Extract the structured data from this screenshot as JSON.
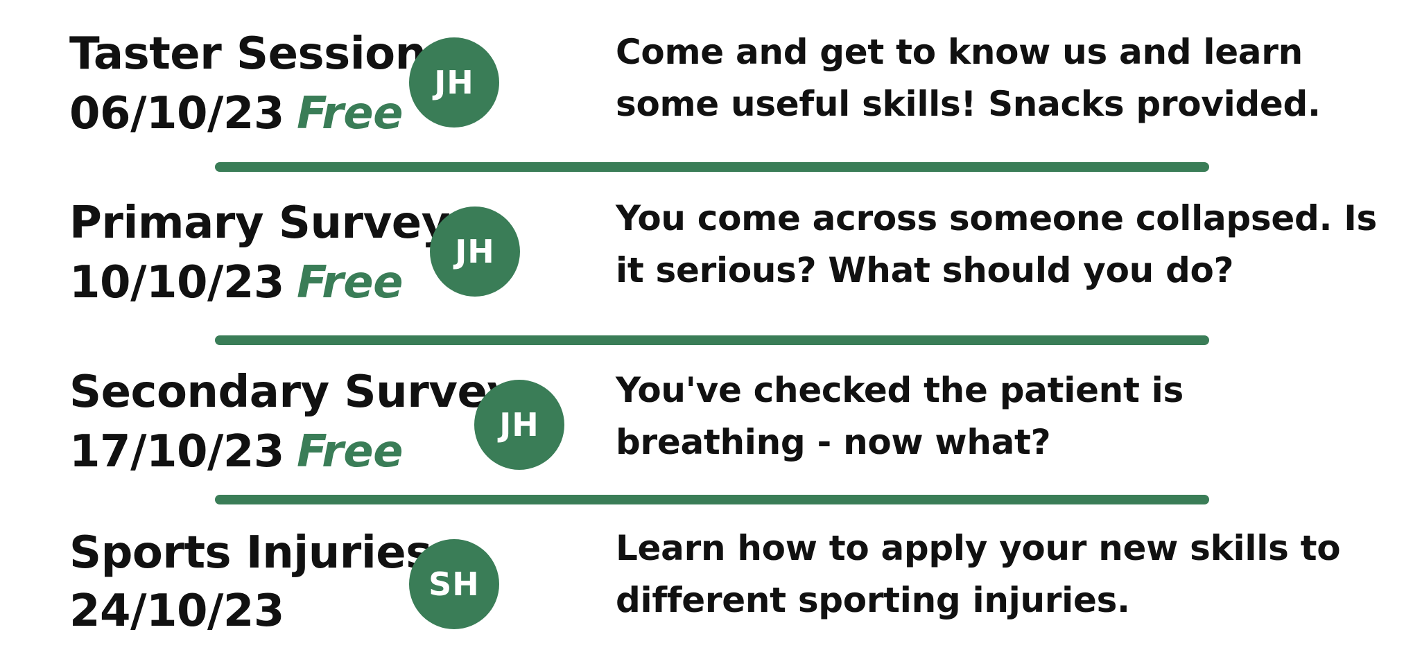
{
  "colors": {
    "accent": "#3a7d57",
    "text": "#111111",
    "background": "#ffffff"
  },
  "sessions": [
    {
      "title": "Taster Session",
      "date": "06/10/23",
      "price": "Free",
      "instructor_initials": "JH",
      "description": "Come and get to know us and learn some useful skills! Snacks provided."
    },
    {
      "title": "Primary Survey",
      "date": "10/10/23",
      "price": "Free",
      "instructor_initials": "JH",
      "description": "You come across someone collapsed. Is it serious? What should you do?"
    },
    {
      "title": "Secondary Survey",
      "date": "17/10/23",
      "price": "Free",
      "instructor_initials": "JH",
      "description": "You've checked the patient is breathing - now what?"
    },
    {
      "title": "Sports Injuries",
      "date": "24/10/23",
      "price": "",
      "instructor_initials": "SH",
      "description": "Learn how to apply your new skills to different sporting injuries."
    }
  ]
}
